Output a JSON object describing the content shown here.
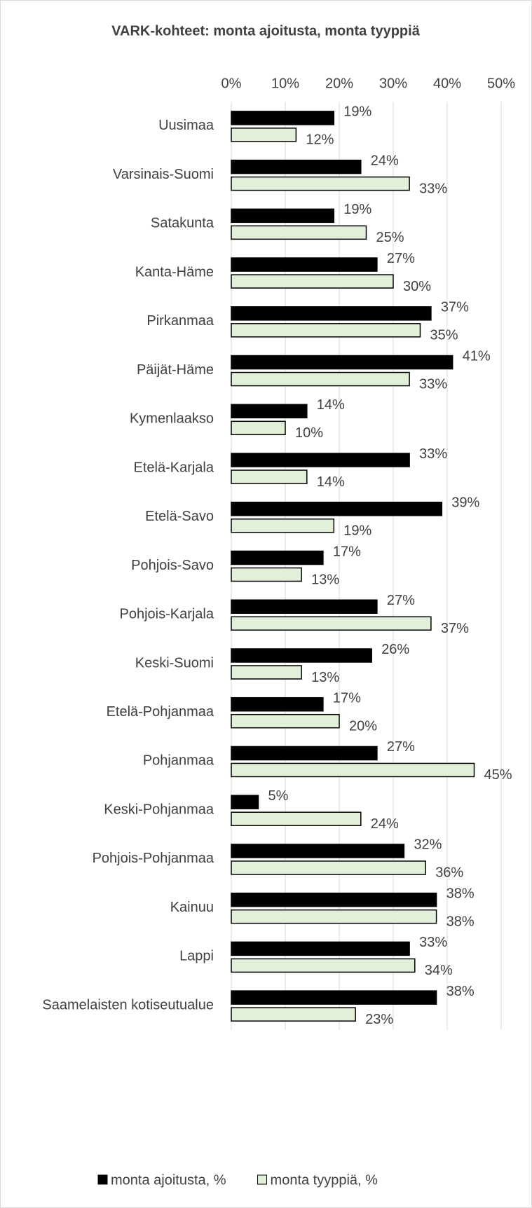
{
  "chart_data": {
    "type": "bar",
    "orientation": "horizontal",
    "title": "VARK-kohteet: monta ajoitusta, monta tyyppiä",
    "categories": [
      "Uusimaa",
      "Varsinais-Suomi",
      "Satakunta",
      "Kanta-Häme",
      "Pirkanmaa",
      "Päijät-Häme",
      "Kymenlaakso",
      "Etelä-Karjala",
      "Etelä-Savo",
      "Pohjois-Savo",
      "Pohjois-Karjala",
      "Keski-Suomi",
      "Etelä-Pohjanmaa",
      "Pohjanmaa",
      "Keski-Pohjanmaa",
      "Pohjois-Pohjanmaa",
      "Kainuu",
      "Lappi",
      "Saamelaisten kotiseutualue"
    ],
    "series": [
      {
        "name": "monta ajoitusta, %",
        "color": "#000000",
        "values": [
          19,
          24,
          19,
          27,
          37,
          41,
          14,
          33,
          39,
          17,
          27,
          26,
          17,
          27,
          5,
          32,
          38,
          33,
          38
        ],
        "value_labels": [
          "19%",
          "24%",
          "19%",
          "27%",
          "37%",
          "41%",
          "14%",
          "33%",
          "39%",
          "17%",
          "27%",
          "26%",
          "17%",
          "27%",
          "5%",
          "32%",
          "38%",
          "33%",
          "38%"
        ]
      },
      {
        "name": "monta tyyppiä, %",
        "color": "#e2f0d9",
        "values": [
          12,
          33,
          25,
          30,
          35,
          33,
          10,
          14,
          19,
          13,
          37,
          13,
          20,
          45,
          24,
          36,
          38,
          34,
          23
        ],
        "value_labels": [
          "12%",
          "33%",
          "25%",
          "30%",
          "35%",
          "33%",
          "10%",
          "14%",
          "19%",
          "13%",
          "37%",
          "13%",
          "20%",
          "45%",
          "24%",
          "36%",
          "38%",
          "34%",
          "23%"
        ]
      }
    ],
    "xlim": [
      0,
      50
    ],
    "xticks": [
      {
        "value": 0,
        "label": "0%"
      },
      {
        "value": 10,
        "label": "10%"
      },
      {
        "value": 20,
        "label": "20%"
      },
      {
        "value": 30,
        "label": "30%"
      },
      {
        "value": 40,
        "label": "40%"
      },
      {
        "value": 50,
        "label": "50%"
      }
    ],
    "grid": true,
    "legend": "bottom"
  }
}
